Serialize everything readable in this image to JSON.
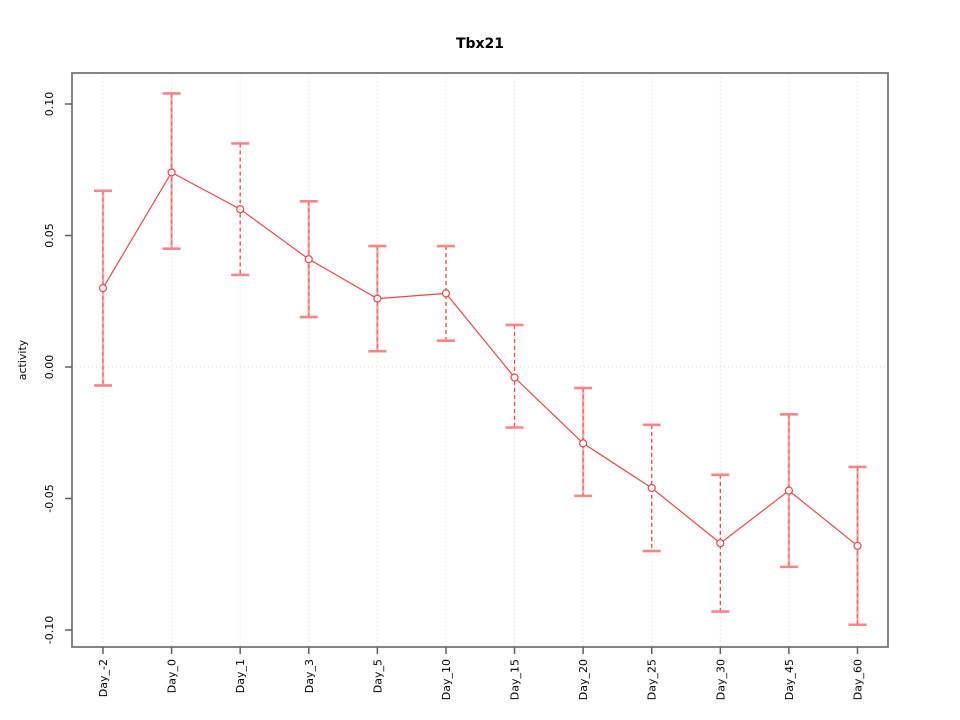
{
  "chart_data": {
    "type": "line",
    "title": "Tbx21",
    "xlabel": "",
    "ylabel": "activity",
    "categories": [
      "Day_-2",
      "Day_0",
      "Day_1",
      "Day_3",
      "Day_5",
      "Day_10",
      "Day_15",
      "Day_20",
      "Day_25",
      "Day_30",
      "Day_45",
      "Day_60"
    ],
    "series": [
      {
        "name": "activity",
        "values": [
          0.03,
          0.074,
          0.06,
          0.041,
          0.026,
          0.028,
          -0.004,
          -0.029,
          -0.046,
          -0.067,
          -0.047,
          -0.068
        ],
        "ci_low": [
          -0.007,
          0.045,
          0.035,
          0.019,
          0.006,
          0.01,
          -0.023,
          -0.049,
          -0.07,
          -0.093,
          -0.076,
          -0.098
        ],
        "ci_high": [
          0.067,
          0.104,
          0.085,
          0.063,
          0.046,
          0.046,
          0.016,
          -0.008,
          -0.022,
          -0.041,
          -0.018,
          -0.038
        ],
        "error_bar_styles": [
          "solid",
          "solid",
          "dashed",
          "solid",
          "solid",
          "dashed",
          "dashed",
          "solid",
          "dashed",
          "dashed",
          "solid",
          "solid"
        ]
      }
    ],
    "ylim": [
      -0.112,
      0.112
    ],
    "yticks": [
      0.1,
      0.05,
      0.0,
      -0.05,
      -0.1
    ],
    "ytick_labels": [
      "0.10",
      "0.05",
      "0.00",
      "-0.05",
      "-0.10"
    ],
    "grid": {
      "vertical": "dotted line at every category",
      "horizontal": "dotted line at y=0 only",
      "style": "dotted"
    },
    "legend": "none",
    "marker": "open-circle",
    "colors": {
      "line": "#ef4444",
      "point_stroke": "#ef4444",
      "point_fill": "#ffffff",
      "error_bar_solid": "#f7a8a8",
      "error_bar_dashed": "#ef4444",
      "error_cap": "#fb8585",
      "grid": "#d9d9d9",
      "box": "#848484",
      "tick": "#5f5f5f",
      "text": "#000000",
      "background": "#ffffff"
    }
  }
}
